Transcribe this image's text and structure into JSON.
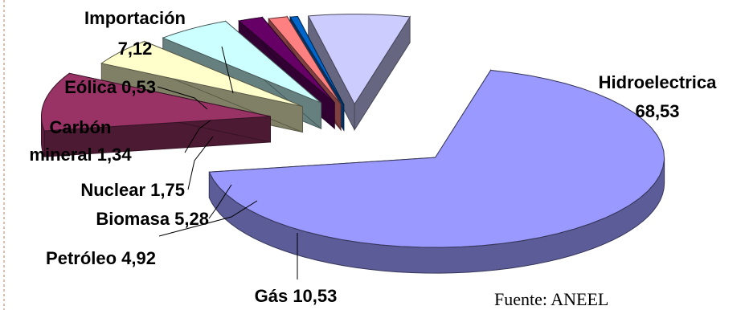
{
  "chart_data": {
    "type": "pie",
    "style": "3d-exploded",
    "slices": [
      {
        "name": "Hidroelectrica",
        "value": 68.53,
        "value_label": "68,53",
        "color": "#9999ff"
      },
      {
        "name": "Gás",
        "value": 10.53,
        "value_label": "10,53",
        "color": "#993366"
      },
      {
        "name": "Petróleo",
        "value": 4.92,
        "value_label": "4,92",
        "color": "#ffffcc"
      },
      {
        "name": "Biomasa",
        "value": 5.28,
        "value_label": "5,28",
        "color": "#ccffff"
      },
      {
        "name": "Nuclear",
        "value": 1.75,
        "value_label": "1,75",
        "color": "#660066"
      },
      {
        "name": "Carbón mineral",
        "value": 1.34,
        "value_label": "1,34",
        "color": "#ff8080"
      },
      {
        "name": "Eólica",
        "value": 0.53,
        "value_label": "0,53",
        "color": "#0066cc"
      },
      {
        "name": "Importación",
        "value": 7.12,
        "value_label": "7,12",
        "color": "#ccccff"
      }
    ]
  },
  "labels": {
    "hidro_name": "Hidroelectrica",
    "hidro_value": "68,53",
    "gas": "Gás 10,53",
    "petroleo": "Petróleo 4,92",
    "biomasa": "Biomasa 5,28",
    "nuclear": "Nuclear 1,75",
    "carbon_line1": "Carbón",
    "carbon_line2": "mineral 1,34",
    "eolica": "Eólica 0,53",
    "importacion_name": "Importación",
    "importacion_value": "7,12"
  },
  "source": "Fuente: ANEEL"
}
